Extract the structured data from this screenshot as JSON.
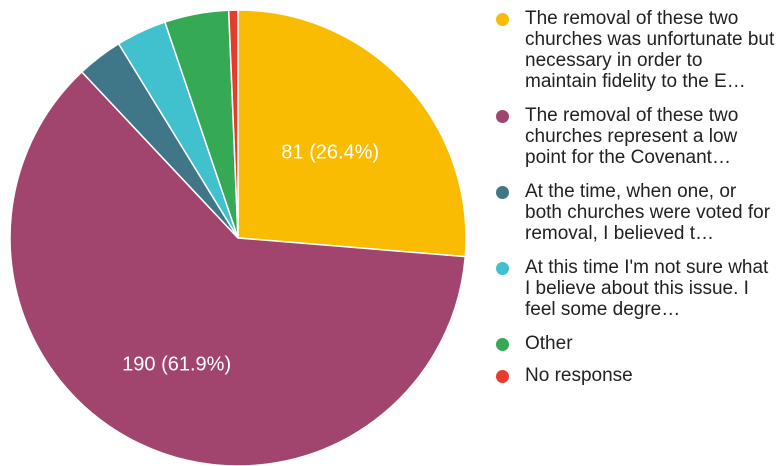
{
  "chart_data": {
    "type": "pie",
    "slices": [
      {
        "label": "The removal of these two churches was unfortunate but necessary in order to maintain fidelity to the E…",
        "value": 81,
        "percent": 26.4,
        "color": "#F9BC02",
        "data_label": "81 (26.4%)"
      },
      {
        "label": "The removal of these two churches represent a low point for the Covenant…",
        "value": 190,
        "percent": 61.9,
        "color": "#A1456F",
        "data_label": "190 (61.9%)"
      },
      {
        "label": "At the time, when one, or both churches were voted for removal, I believed t…",
        "value": 10,
        "percent": 3.3,
        "color": "#3F7688",
        "data_label": ""
      },
      {
        "label": "At this time I'm not sure what I believe about this issue. I feel some degre…",
        "value": 11,
        "percent": 3.6,
        "color": "#41C0CD",
        "data_label": ""
      },
      {
        "label": "Other",
        "value": 14,
        "percent": 4.6,
        "color": "#36A955",
        "data_label": ""
      },
      {
        "label": "No response",
        "value": 2,
        "percent": 0.7,
        "color": "#E53C2E",
        "data_label": ""
      }
    ],
    "legend_position": "right"
  }
}
